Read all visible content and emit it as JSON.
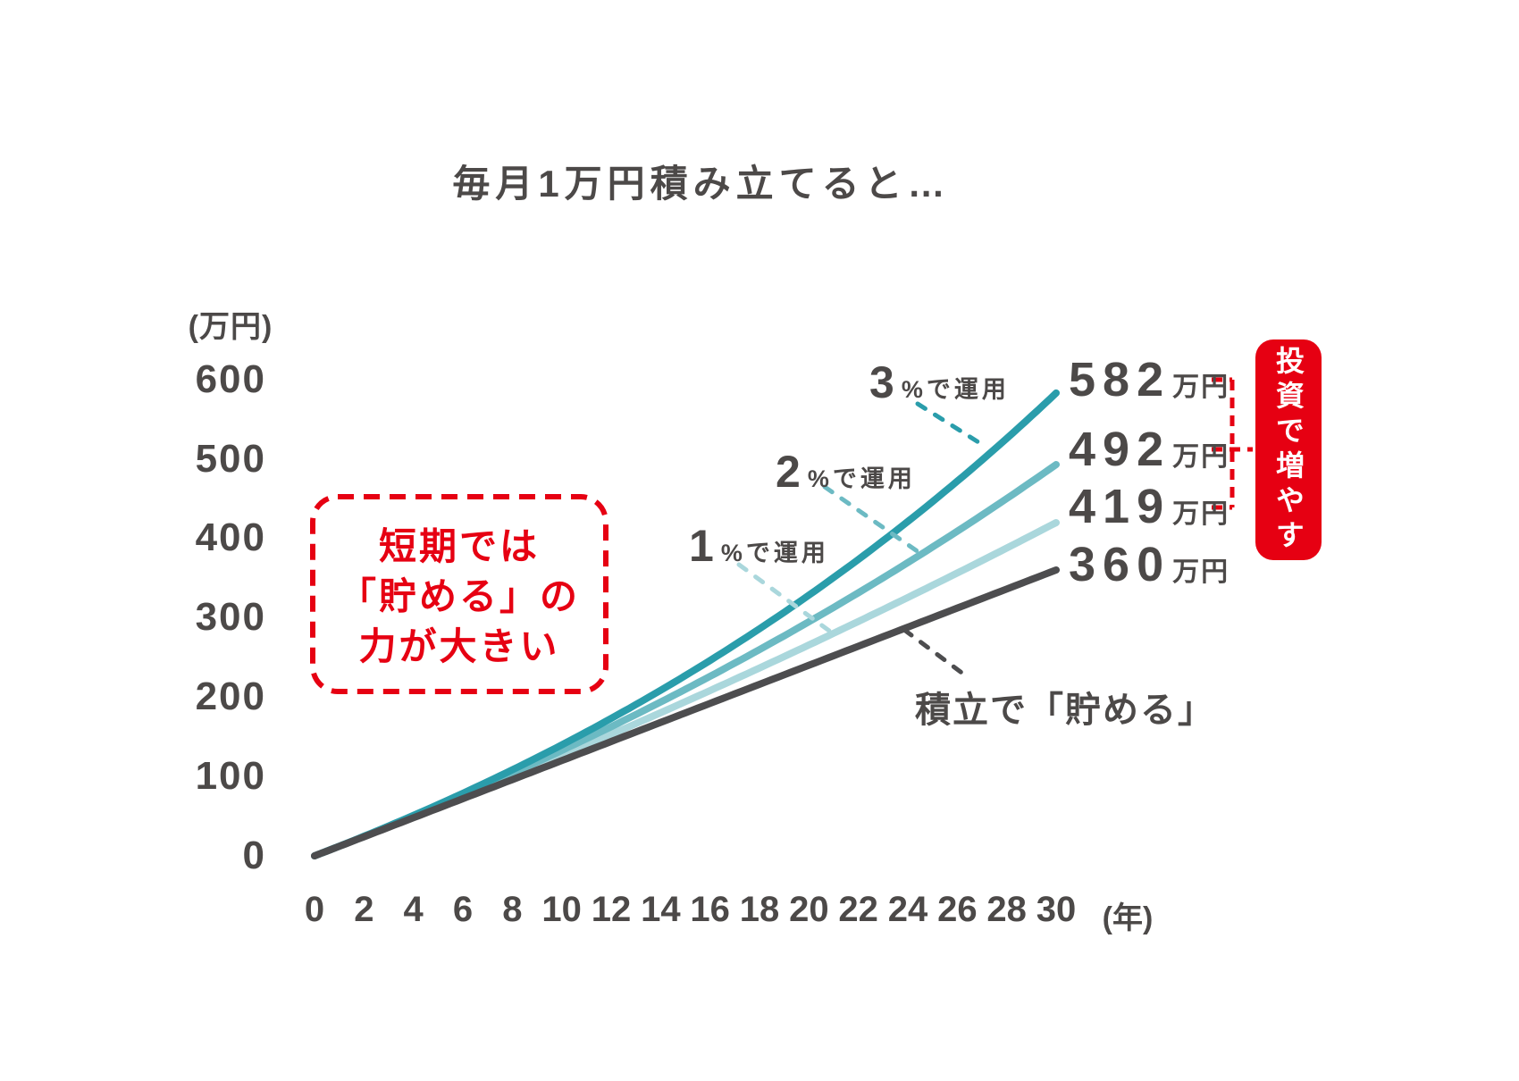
{
  "title": "毎月1万円積み立てると…",
  "y_axis": {
    "unit": "(万円)",
    "ticks": [
      "600",
      "500",
      "400",
      "300",
      "200",
      "100",
      "0"
    ],
    "tick_values": [
      600,
      500,
      400,
      300,
      200,
      100,
      0
    ]
  },
  "x_axis": {
    "unit": "(年)",
    "ticks": [
      "0",
      "2",
      "4",
      "6",
      "8",
      "10",
      "12",
      "14",
      "16",
      "18",
      "20",
      "22",
      "24",
      "26",
      "28",
      "30"
    ],
    "tick_values": [
      0,
      2,
      4,
      6,
      8,
      10,
      12,
      14,
      16,
      18,
      20,
      22,
      24,
      26,
      28,
      30
    ]
  },
  "chart_data": {
    "type": "line",
    "title": "毎月1万円積み立てると…",
    "xlabel": "(年)",
    "ylabel": "(万円)",
    "xlim": [
      0,
      30
    ],
    "ylim": [
      0,
      600
    ],
    "grid": false,
    "x_sample_years": [
      0,
      5,
      10,
      15,
      20,
      25,
      30
    ],
    "series": [
      {
        "key": "run3",
        "name": "3%で運用",
        "label_big": "3",
        "label_small": "%で運用",
        "annual_rate": 0.03,
        "values": [
          0,
          65,
          140,
          227,
          328,
          446,
          582
        ],
        "final_value": "582",
        "final_unit": "万円",
        "color": "#2a9dab"
      },
      {
        "key": "run2",
        "name": "2%で運用",
        "label_big": "2",
        "label_small": "%で運用",
        "annual_rate": 0.02,
        "values": [
          0,
          63,
          133,
          210,
          295,
          389,
          492
        ],
        "final_value": "492",
        "final_unit": "万円",
        "color": "#6cbac3"
      },
      {
        "key": "run1",
        "name": "1%で運用",
        "label_big": "1",
        "label_small": "%で運用",
        "annual_rate": 0.01,
        "values": [
          0,
          62,
          126,
          194,
          266,
          341,
          419
        ],
        "final_value": "419",
        "final_unit": "万円",
        "color": "#aad7dc"
      },
      {
        "key": "save",
        "name": "積立で「貯める」",
        "annual_rate": 0,
        "values": [
          0,
          60,
          120,
          180,
          240,
          300,
          360
        ],
        "final_value": "360",
        "final_unit": "万円",
        "color": "#4d4d4f"
      }
    ]
  },
  "annotations": {
    "callout_lines": [
      "短期では",
      "「貯める」の",
      "力が大きい"
    ],
    "badge": "投資で増やす",
    "savings_label": "積立で「貯める」"
  },
  "colors": {
    "text": "#4c4948",
    "red": "#e60012",
    "run3": "#2a9dab",
    "run2": "#6cbac3",
    "run1": "#aad7dc",
    "save": "#4d4d4f"
  }
}
